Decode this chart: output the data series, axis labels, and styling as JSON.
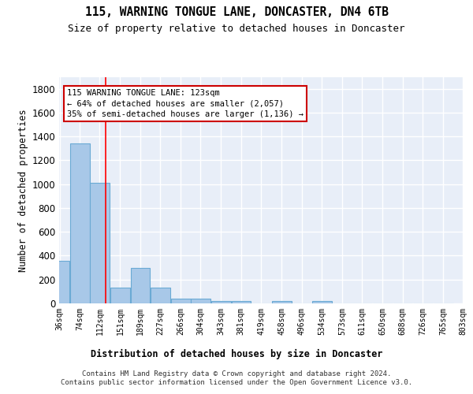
{
  "title": "115, WARNING TONGUE LANE, DONCASTER, DN4 6TB",
  "subtitle": "Size of property relative to detached houses in Doncaster",
  "xlabel": "Distribution of detached houses by size in Doncaster",
  "ylabel": "Number of detached properties",
  "bins": [
    36,
    74,
    112,
    151,
    189,
    227,
    266,
    304,
    343,
    381,
    419,
    458,
    496,
    534,
    573,
    611,
    650,
    688,
    726,
    765,
    803
  ],
  "bar_heights": [
    355,
    1340,
    1010,
    130,
    295,
    130,
    40,
    40,
    20,
    20,
    0,
    20,
    0,
    20,
    0,
    0,
    0,
    0,
    0,
    0
  ],
  "bar_color": "#a8c8e8",
  "bar_edge_color": "#6aaad4",
  "bg_color": "#e8eef8",
  "grid_color": "#ffffff",
  "red_line_x": 123,
  "annotation_line1": "115 WARNING TONGUE LANE: 123sqm",
  "annotation_line2": "← 64% of detached houses are smaller (2,057)",
  "annotation_line3": "35% of semi-detached houses are larger (1,136) →",
  "annotation_box_color": "#cc0000",
  "ylim": [
    0,
    1900
  ],
  "yticks": [
    0,
    200,
    400,
    600,
    800,
    1000,
    1200,
    1400,
    1600,
    1800
  ],
  "footer_line1": "Contains HM Land Registry data © Crown copyright and database right 2024.",
  "footer_line2": "Contains public sector information licensed under the Open Government Licence v3.0.",
  "tick_labels": [
    "36sqm",
    "74sqm",
    "112sqm",
    "151sqm",
    "189sqm",
    "227sqm",
    "266sqm",
    "304sqm",
    "343sqm",
    "381sqm",
    "419sqm",
    "458sqm",
    "496sqm",
    "534sqm",
    "573sqm",
    "611sqm",
    "650sqm",
    "688sqm",
    "726sqm",
    "765sqm",
    "803sqm"
  ],
  "title_fontsize": 10.5,
  "subtitle_fontsize": 9,
  "ylabel_fontsize": 8.5,
  "ytick_fontsize": 8.5,
  "xtick_fontsize": 7,
  "xlabel_fontsize": 8.5,
  "footer_fontsize": 6.5
}
